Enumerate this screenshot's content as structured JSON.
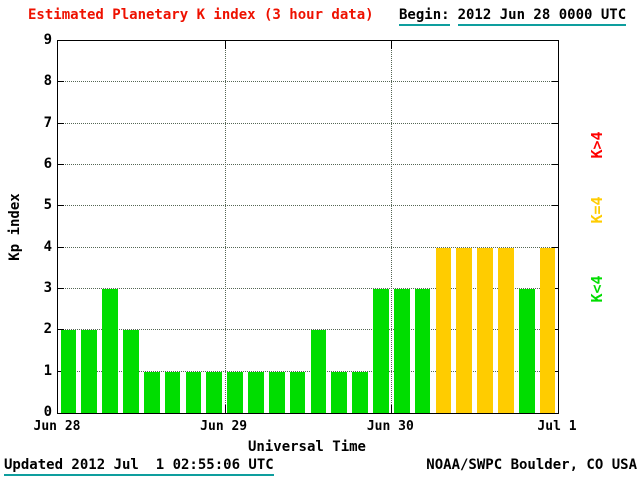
{
  "header": {
    "title": "Estimated Planetary K index (3 hour data)",
    "begin_label": "Begin:",
    "begin_value": "2012 Jun 28 0000 UTC"
  },
  "colors": {
    "title": "#ee1100",
    "underline": "#0e9e9e",
    "green": "#00dd00",
    "yellow": "#ffcc00",
    "red": "#ff0000"
  },
  "chart_data": {
    "type": "bar",
    "title": "Estimated Planetary K index (3 hour data)",
    "ylabel": "Kp index",
    "xlabel": "Universal Time",
    "ylim": [
      0,
      9
    ],
    "y_ticks": [
      0,
      1,
      2,
      3,
      4,
      5,
      6,
      7,
      8,
      9
    ],
    "x_tick_labels": [
      "Jun 28",
      "Jun 29",
      "Jun 30",
      "Jul 1"
    ],
    "interval_hours": 3,
    "bars_per_day": 8,
    "start": "2012 Jun 28 0000 UTC",
    "values": [
      2,
      2,
      3,
      2,
      1,
      1,
      1,
      1,
      1,
      1,
      1,
      1,
      2,
      1,
      1,
      3,
      3,
      3,
      4,
      4,
      4,
      4,
      3,
      4
    ],
    "color_rules": {
      "below_4": "#00dd00",
      "equal_4": "#ffcc00",
      "above_4": "#ff0000"
    },
    "grid": "dotted"
  },
  "legend": {
    "items": [
      {
        "label": "K>4",
        "color": "#ff0000"
      },
      {
        "label": "K=4",
        "color": "#ffcc00"
      },
      {
        "label": "K<4",
        "color": "#00dd00"
      }
    ]
  },
  "footer": {
    "updated": "Updated 2012 Jul  1 02:55:06 UTC",
    "source": "NOAA/SWPC Boulder, CO USA"
  }
}
